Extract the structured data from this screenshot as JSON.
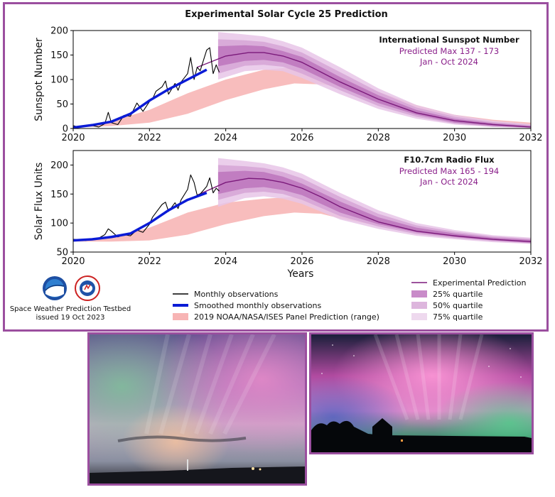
{
  "title": "Experimental Solar Cycle 25 Prediction",
  "footer": {
    "org_line1": "Space Weather Prediction Testbed",
    "org_line2": "issued 19 Oct 2023"
  },
  "legend_left": [
    {
      "label": "Monthly observations",
      "color": "#000000",
      "kind": "line"
    },
    {
      "label": "Smoothed monthly observations",
      "color": "#0a1bd6",
      "kind": "thickline"
    },
    {
      "label": "2019 NOAA/NASA/ISES Panel Prediction (range)",
      "color": "#f7b4b4",
      "kind": "patch"
    }
  ],
  "legend_right": [
    {
      "label": "Experimental Prediction",
      "color": "#7b1a7b",
      "kind": "line"
    },
    {
      "label": "25% quartile",
      "color": "#c98bc9",
      "kind": "patch"
    },
    {
      "label": "50% quartile",
      "color": "#ddb6dd",
      "kind": "patch"
    },
    {
      "label": "75% quartile",
      "color": "#eed9ee",
      "kind": "patch"
    }
  ],
  "xlabel": "Years",
  "chart_data": [
    {
      "type": "line",
      "ylabel": "Sunspot Number",
      "xlim": [
        2020,
        2032
      ],
      "ylim": [
        0,
        200
      ],
      "xticks": [
        2020,
        2022,
        2024,
        2026,
        2028,
        2030,
        2032
      ],
      "yticks": [
        0,
        50,
        100,
        150,
        200
      ],
      "annotation": {
        "title": "International Sunspot Number",
        "line1": "Predicted Max 137 - 173",
        "line2": "Jan - Oct 2024"
      },
      "monthly_observations": {
        "x": [
          2020.0,
          2020.17,
          2020.33,
          2020.5,
          2020.67,
          2020.83,
          2020.92,
          2021.0,
          2021.17,
          2021.33,
          2021.5,
          2021.67,
          2021.83,
          2022.0,
          2022.08,
          2022.17,
          2022.33,
          2022.42,
          2022.5,
          2022.67,
          2022.75,
          2022.83,
          2023.0,
          2023.08,
          2023.17,
          2023.25,
          2023.33,
          2023.5,
          2023.58,
          2023.67,
          2023.75,
          2023.83
        ],
        "y": [
          6,
          2,
          5,
          6,
          3,
          10,
          33,
          12,
          8,
          27,
          25,
          52,
          35,
          55,
          60,
          76,
          85,
          97,
          70,
          92,
          78,
          95,
          112,
          145,
          100,
          125,
          118,
          160,
          165,
          112,
          130,
          115
        ]
      },
      "smoothed_observations": {
        "x": [
          2020.0,
          2020.5,
          2021.0,
          2021.5,
          2022.0,
          2022.5,
          2023.0,
          2023.5
        ],
        "y": [
          2,
          7,
          14,
          30,
          57,
          80,
          100,
          120
        ]
      },
      "panel_2019": {
        "x": [
          2020,
          2021,
          2022,
          2023,
          2024,
          2025,
          2025.8,
          2026.5,
          2027,
          2028,
          2029,
          2030,
          2031,
          2032
        ],
        "lower": [
          2,
          5,
          12,
          30,
          58,
          80,
          92,
          90,
          85,
          62,
          40,
          22,
          12,
          6
        ],
        "upper": [
          3,
          15,
          38,
          72,
          100,
          120,
          125,
          118,
          105,
          75,
          48,
          28,
          18,
          12
        ]
      },
      "experimental_prediction": {
        "x": [
          2023.25,
          2024,
          2024.6,
          2025,
          2025.5,
          2026,
          2026.5,
          2027,
          2028,
          2029,
          2030,
          2031,
          2032
        ],
        "y": [
          125,
          148,
          155,
          155,
          148,
          135,
          115,
          95,
          60,
          32,
          16,
          8,
          3
        ]
      },
      "quartile_25": {
        "x": [
          2023.8,
          2024.5,
          2025,
          2025.5,
          2026,
          2027,
          2028,
          2029,
          2030,
          2031,
          2032
        ],
        "lower": [
          127,
          138,
          140,
          135,
          122,
          85,
          52,
          28,
          12,
          5,
          2
        ],
        "upper": [
          168,
          170,
          168,
          158,
          146,
          105,
          68,
          38,
          20,
          11,
          5
        ]
      },
      "quartile_50": {
        "x": [
          2023.8,
          2024.5,
          2025,
          2025.5,
          2026,
          2027,
          2028,
          2029,
          2030,
          2031,
          2032
        ],
        "lower": [
          112,
          128,
          130,
          126,
          112,
          78,
          46,
          24,
          10,
          4,
          1
        ],
        "upper": [
          182,
          180,
          177,
          168,
          155,
          115,
          75,
          43,
          24,
          13,
          7
        ]
      },
      "quartile_75": {
        "x": [
          2023.8,
          2024.5,
          2025,
          2025.5,
          2026,
          2027,
          2028,
          2029,
          2030,
          2031,
          2032
        ],
        "lower": [
          100,
          117,
          120,
          117,
          103,
          70,
          40,
          20,
          8,
          3,
          1
        ],
        "upper": [
          197,
          192,
          188,
          178,
          165,
          125,
          82,
          48,
          28,
          16,
          9
        ]
      }
    },
    {
      "type": "line",
      "ylabel": "Solar Flux Units",
      "xlim": [
        2020,
        2032
      ],
      "ylim": [
        50,
        225
      ],
      "xticks": [
        2020,
        2022,
        2024,
        2026,
        2028,
        2030,
        2032
      ],
      "yticks": [
        50,
        100,
        150,
        200
      ],
      "annotation": {
        "title": "F10.7cm Radio Flux",
        "line1": "Predicted Max 165 - 194",
        "line2": "Jan - Oct 2024"
      },
      "monthly_observations": {
        "x": [
          2020.0,
          2020.17,
          2020.33,
          2020.5,
          2020.67,
          2020.83,
          2020.92,
          2021.0,
          2021.17,
          2021.33,
          2021.5,
          2021.67,
          2021.83,
          2022.0,
          2022.08,
          2022.17,
          2022.33,
          2022.42,
          2022.5,
          2022.67,
          2022.75,
          2022.83,
          2023.0,
          2023.08,
          2023.17,
          2023.25,
          2023.33,
          2023.5,
          2023.58,
          2023.67,
          2023.75,
          2023.83
        ],
        "y": [
          72,
          71,
          70,
          72,
          74,
          80,
          90,
          86,
          76,
          80,
          78,
          88,
          84,
          98,
          110,
          118,
          132,
          136,
          120,
          135,
          125,
          140,
          158,
          183,
          170,
          148,
          150,
          163,
          178,
          152,
          160,
          155
        ]
      },
      "smoothed_observations": {
        "x": [
          2020.0,
          2020.5,
          2021.0,
          2021.5,
          2022.0,
          2022.5,
          2023.0,
          2023.5
        ],
        "y": [
          70,
          72,
          76,
          82,
          100,
          122,
          140,
          152
        ]
      },
      "panel_2019": {
        "x": [
          2020,
          2021,
          2022,
          2023,
          2024,
          2025,
          2025.8,
          2026.5,
          2027,
          2028,
          2029,
          2030,
          2031,
          2032
        ],
        "lower": [
          68,
          68,
          70,
          80,
          98,
          112,
          118,
          116,
          108,
          95,
          82,
          74,
          70,
          68
        ],
        "upper": [
          70,
          75,
          92,
          118,
          135,
          142,
          145,
          140,
          130,
          108,
          90,
          78,
          72,
          70
        ]
      },
      "experimental_prediction": {
        "x": [
          2023.25,
          2024,
          2024.6,
          2025,
          2025.5,
          2026,
          2026.5,
          2027,
          2028,
          2029,
          2030,
          2031,
          2032
        ],
        "y": [
          148,
          170,
          177,
          176,
          170,
          160,
          145,
          128,
          102,
          86,
          78,
          72,
          68
        ]
      },
      "quartile_25": {
        "x": [
          2023.8,
          2024.5,
          2025,
          2025.5,
          2026,
          2027,
          2028,
          2029,
          2030,
          2031,
          2032
        ],
        "lower": [
          150,
          160,
          162,
          157,
          148,
          118,
          98,
          84,
          76,
          70,
          66
        ],
        "upper": [
          188,
          190,
          188,
          180,
          168,
          137,
          110,
          92,
          82,
          75,
          71
        ]
      },
      "quartile_50": {
        "x": [
          2023.8,
          2024.5,
          2025,
          2025.5,
          2026,
          2027,
          2028,
          2029,
          2030,
          2031,
          2032
        ],
        "lower": [
          140,
          152,
          154,
          150,
          140,
          112,
          94,
          81,
          74,
          69,
          65
        ],
        "upper": [
          200,
          198,
          195,
          188,
          177,
          145,
          116,
          96,
          85,
          77,
          73
        ]
      },
      "quartile_75": {
        "x": [
          2023.8,
          2024.5,
          2025,
          2025.5,
          2026,
          2027,
          2028,
          2029,
          2030,
          2031,
          2032
        ],
        "lower": [
          128,
          143,
          146,
          142,
          133,
          106,
          90,
          78,
          72,
          67,
          64
        ],
        "upper": [
          212,
          207,
          203,
          196,
          185,
          152,
          122,
          100,
          88,
          79,
          75
        ]
      }
    }
  ]
}
